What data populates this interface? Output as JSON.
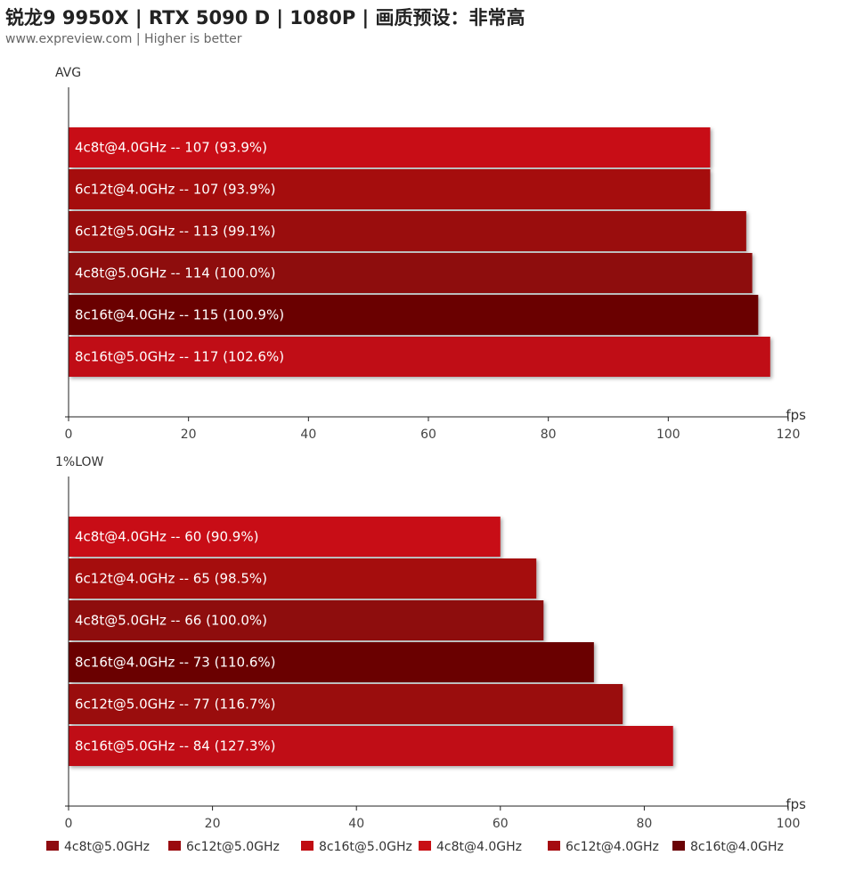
{
  "header": {
    "title": "锐龙9 9950X | RTX 5090 D | 1080P | 画质预设：非常高",
    "subtitle": "www.expreview.com | Higher is better"
  },
  "colors": {
    "4c8t@5.0GHz": "#8e0b10",
    "6c12t@5.0GHz": "#9a0a0f",
    "8c16t@5.0GHz": "#c00d12",
    "4c8t@4.0GHz": "#c80f14",
    "6c12t@4.0GHz": "#a50b10",
    "8c16t@4.0GHz": "#6a0305"
  },
  "chart_data": [
    {
      "type": "bar",
      "orientation": "horizontal",
      "title": "AVG",
      "unit": "fps",
      "xlim": [
        0,
        120
      ],
      "ticks": [
        0,
        20,
        40,
        60,
        80,
        100,
        120
      ],
      "bars": [
        {
          "config": "4c8t@4.0GHz",
          "value": 107,
          "label": "4c8t@4.0GHz  --  107 (93.9%)"
        },
        {
          "config": "6c12t@4.0GHz",
          "value": 107,
          "label": "6c12t@4.0GHz  --  107 (93.9%)"
        },
        {
          "config": "6c12t@5.0GHz",
          "value": 113,
          "label": "6c12t@5.0GHz  --  113 (99.1%)"
        },
        {
          "config": "4c8t@5.0GHz",
          "value": 114,
          "label": "4c8t@5.0GHz  --  114 (100.0%)"
        },
        {
          "config": "8c16t@4.0GHz",
          "value": 115,
          "label": "8c16t@4.0GHz  --  115 (100.9%)"
        },
        {
          "config": "8c16t@5.0GHz",
          "value": 117,
          "label": "8c16t@5.0GHz  --  117 (102.6%)"
        }
      ]
    },
    {
      "type": "bar",
      "orientation": "horizontal",
      "title": "1%LOW",
      "unit": "fps",
      "xlim": [
        0,
        100
      ],
      "ticks": [
        0,
        20,
        40,
        60,
        80,
        100
      ],
      "bars": [
        {
          "config": "4c8t@4.0GHz",
          "value": 60,
          "label": "4c8t@4.0GHz  --  60 (90.9%)"
        },
        {
          "config": "6c12t@4.0GHz",
          "value": 65,
          "label": "6c12t@4.0GHz  --  65 (98.5%)"
        },
        {
          "config": "4c8t@5.0GHz",
          "value": 66,
          "label": "4c8t@5.0GHz  --  66 (100.0%)"
        },
        {
          "config": "8c16t@4.0GHz",
          "value": 73,
          "label": "8c16t@4.0GHz  --  73 (110.6%)"
        },
        {
          "config": "6c12t@5.0GHz",
          "value": 77,
          "label": "6c12t@5.0GHz  --  77 (116.7%)"
        },
        {
          "config": "8c16t@5.0GHz",
          "value": 84,
          "label": "8c16t@5.0GHz  --  84 (127.3%)"
        }
      ]
    }
  ],
  "legend": [
    "4c8t@5.0GHz",
    "6c12t@5.0GHz",
    "8c16t@5.0GHz",
    "4c8t@4.0GHz",
    "6c12t@4.0GHz",
    "8c16t@4.0GHz"
  ]
}
